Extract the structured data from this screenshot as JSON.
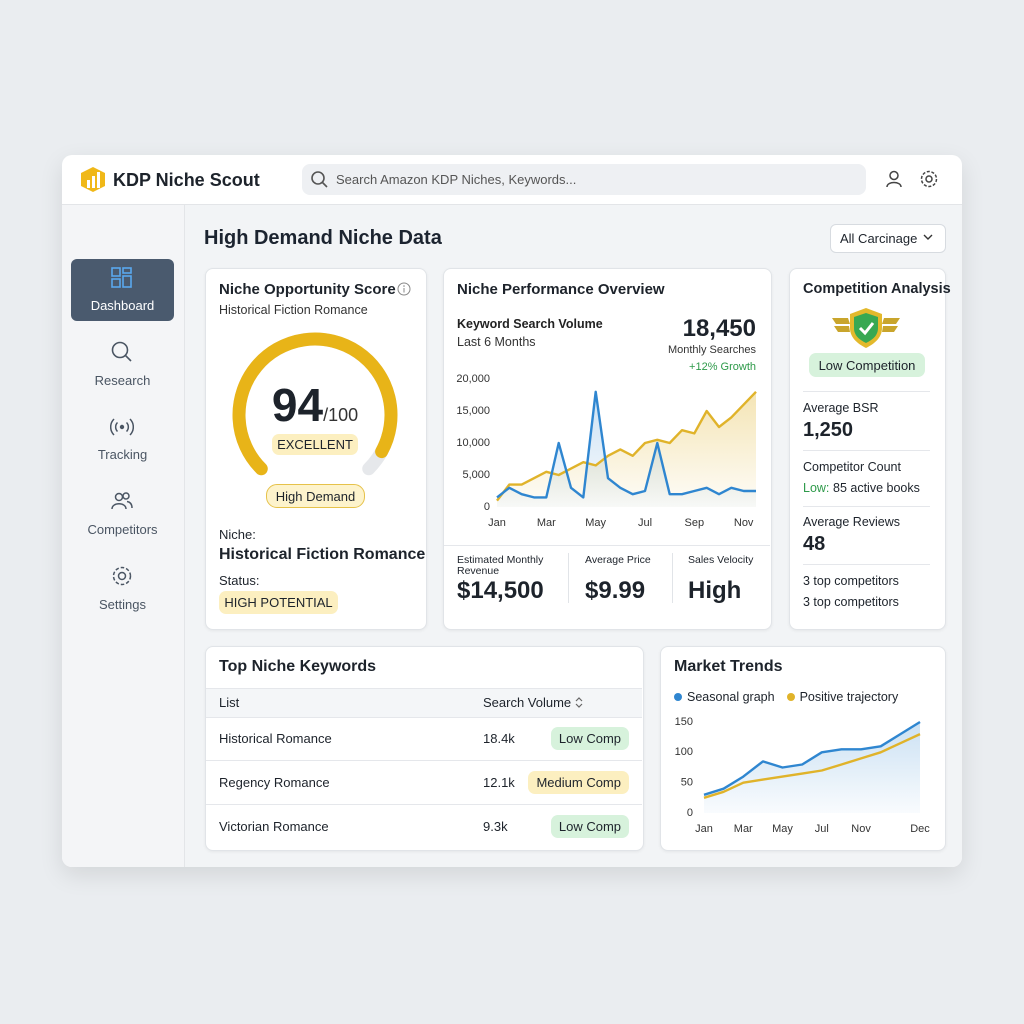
{
  "header": {
    "brand": "KDP Niche Scout",
    "search_placeholder": "Search Amazon KDP Niches, Keywords..."
  },
  "sidebar": {
    "items": [
      "Dashboard",
      "Research",
      "Tracking",
      "Competitors",
      "Settings"
    ],
    "active_index": 0
  },
  "page_title": "High Demand Niche Data",
  "filter": "All Carcinage",
  "score_card": {
    "title": "Niche Opportunity Score",
    "subtitle": "Historical Fiction Romance",
    "score": 94,
    "scale": {
      "value": 100,
      "label": "/100"
    },
    "color": "#e8b418",
    "rating": "EXCELLENT",
    "badge": "High Demand",
    "niche_label": "Niche:",
    "niche": "Historical Fiction Romance",
    "status_label": "Status:",
    "status": "HIGH POTENTIAL"
  },
  "performance": {
    "title": "Niche Performance Overview",
    "metric_title": "Keyword Search Volume",
    "period": "Last 6 Months",
    "total": "18,450",
    "total_label": "Monthly Searches",
    "growth": "+12% Growth",
    "stats": [
      {
        "label": "Estimated Monthly Revenue",
        "value": "$14,500"
      },
      {
        "label": "Average Price",
        "value": "$9.99"
      },
      {
        "label": "Sales Velocity",
        "value": "High"
      }
    ]
  },
  "competition": {
    "title": "Competition Analysis",
    "badge": "Low Competition",
    "avg_bsr_label": "Average BSR",
    "avg_bsr": "1,250",
    "count_label": "Competitor Count",
    "count_prefix": "Low:",
    "count": "85 active books",
    "avg_reviews_label": "Average Reviews",
    "avg_reviews": "48",
    "notes": [
      "3 top competitors",
      "3 top competitors"
    ]
  },
  "keywords": {
    "title": "Top Niche Keywords",
    "columns": [
      "List",
      "Search Volume"
    ],
    "rows": [
      {
        "keyword": "Historical Romance",
        "volume": "18.4k",
        "competition": "Low Comp",
        "badge_color": "#d7f2dc"
      },
      {
        "keyword": "Regency Romance",
        "volume": "12.1k",
        "competition": "Medium Comp",
        "badge_color": "#fcefc0"
      },
      {
        "keyword": "Victorian Romance",
        "volume": "9.3k",
        "competition": "Low Comp",
        "badge_color": "#d7f2dc"
      }
    ]
  },
  "trends": {
    "title": "Market Trends"
  },
  "chart_data": [
    {
      "type": "line",
      "categories": [
        "Jan",
        null,
        null,
        null,
        "Mar",
        null,
        null,
        null,
        "May",
        null,
        null,
        null,
        "Jul",
        null,
        null,
        null,
        "Sep",
        null,
        null,
        null,
        "Nov",
        null
      ],
      "series": [
        {
          "color": "#e0b32a",
          "fill": true,
          "values": [
            1000,
            3500,
            3500,
            4500,
            5500,
            5000,
            6000,
            7000,
            6500,
            8000,
            9000,
            8000,
            10000,
            10500,
            10000,
            12000,
            11500,
            15000,
            12500,
            14000,
            16000,
            18000
          ]
        },
        {
          "color": "#2f86d0",
          "fill": true,
          "values": [
            1500,
            3000,
            2000,
            1500,
            1500,
            10000,
            3000,
            1500,
            18000,
            4500,
            3000,
            2000,
            2500,
            10000,
            2000,
            2000,
            2500,
            3000,
            2000,
            3000,
            2500,
            2500
          ]
        }
      ],
      "ylim": [
        0,
        20000
      ],
      "yticks": [
        0,
        {
          "value": 5000,
          "label": "5,000"
        },
        {
          "value": 10000,
          "label": "10,000"
        },
        {
          "value": 15000,
          "label": "15,000"
        },
        {
          "value": 20000,
          "label": "20,000"
        }
      ],
      "grid": false
    },
    {
      "type": "line",
      "categories": [
        "Jan",
        null,
        "Mar",
        null,
        "May",
        null,
        "Jul",
        null,
        "Nov",
        null,
        null,
        "Dec"
      ],
      "series": [
        {
          "name": "Seasonal graph",
          "color": "#2f86d0",
          "fill": true,
          "values": [
            30,
            40,
            60,
            85,
            75,
            80,
            100,
            105,
            105,
            110,
            130,
            150
          ]
        },
        {
          "name": "Positive trajectory",
          "color": "#e0b32a",
          "fill": false,
          "values": [
            25,
            35,
            50,
            55,
            60,
            65,
            70,
            80,
            90,
            100,
            115,
            130
          ]
        }
      ],
      "ylim": [
        0,
        150
      ],
      "yticks": [
        0,
        50,
        100,
        150
      ],
      "grid": false,
      "legend": "top-left"
    }
  ]
}
